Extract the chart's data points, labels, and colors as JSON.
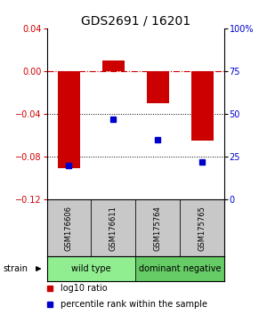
{
  "title": "GDS2691 / 16201",
  "samples": [
    "GSM176606",
    "GSM176611",
    "GSM175764",
    "GSM175765"
  ],
  "log10_ratio": [
    -0.091,
    0.01,
    -0.03,
    -0.065
  ],
  "percentile_rank": [
    20,
    47,
    35,
    22
  ],
  "bar_color": "#cc0000",
  "dot_color": "#0000cc",
  "ylim_left": [
    -0.12,
    0.04
  ],
  "ylim_right": [
    0,
    100
  ],
  "yticks_left": [
    0.04,
    0.0,
    -0.04,
    -0.08,
    -0.12
  ],
  "yticks_right": [
    100,
    75,
    50,
    25,
    0
  ],
  "hline_dash": 0.0,
  "hlines_dot": [
    -0.04,
    -0.08
  ],
  "groups": [
    {
      "label": "wild type",
      "start": 0,
      "end": 2,
      "color": "#90ee90"
    },
    {
      "label": "dominant negative",
      "start": 2,
      "end": 4,
      "color": "#66cc66"
    }
  ],
  "strain_label": "strain",
  "legend_items": [
    {
      "label": "log10 ratio",
      "color": "#cc0000"
    },
    {
      "label": "percentile rank within the sample",
      "color": "#0000cc"
    }
  ],
  "bg_color": "#ffffff",
  "sample_box_color": "#c8c8c8",
  "title_fontsize": 10,
  "tick_fontsize": 7,
  "sample_fontsize": 6,
  "group_fontsize": 7,
  "legend_fontsize": 7
}
